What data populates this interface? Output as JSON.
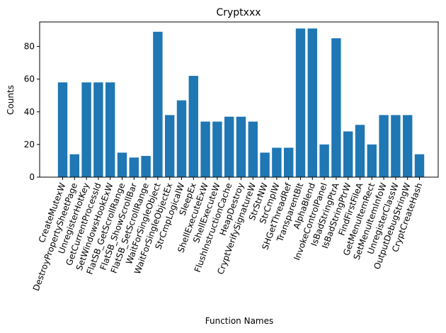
{
  "chart_data": {
    "type": "bar",
    "title": "Cryptxxx",
    "xlabel": "Function Names",
    "ylabel": "Counts",
    "ylim": [
      0,
      95
    ],
    "yticks": [
      0,
      20,
      40,
      60,
      80
    ],
    "grid": false,
    "bar_color": "#1f77b4",
    "categories": [
      "CreateMutexW",
      "DestroyPropertySheetPage",
      "UnregisterHotKey",
      "GetCurrentProcessId",
      "SetWindowsHookExW",
      "FlatSB_GetScrollRange",
      "FlatSB_ShowScrollBar",
      "FlatSB_SetScrollRange",
      "WaitForSingleObject",
      "WaitForSingleObjectEx",
      "StrCmpLogicalW",
      "SleepEx",
      "ShellExecuteExW",
      "ShellExecuteW",
      "FlushInstructionCache",
      "HeapDestroy",
      "CryptVerifySignatureW",
      "StrStrNW",
      "StrCmpIW",
      "SHGetThreadRef",
      "TransparentBlt",
      "AlphaBlend",
      "InvokeControlPanel",
      "IsBadStringPtrA",
      "IsBadStringPtrW",
      "FindFirstFileA",
      "GetMenuItemRect",
      "SetMenuItemInfoW",
      "UnregisterClassW",
      "OutputDebugStringW",
      "CryptCreateHash"
    ],
    "values": [
      58,
      14,
      58,
      58,
      58,
      15,
      12,
      13,
      89,
      38,
      47,
      62,
      34,
      34,
      37,
      37,
      34,
      15,
      18,
      18,
      91,
      91,
      20,
      85,
      28,
      32,
      20,
      38,
      38,
      38,
      14
    ]
  }
}
